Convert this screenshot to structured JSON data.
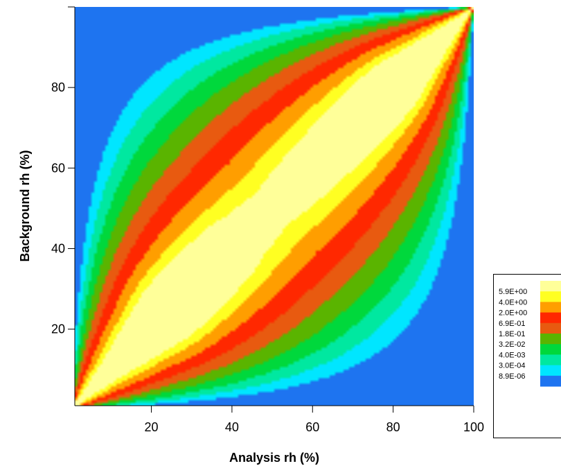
{
  "chart_data": {
    "type": "heatmap",
    "subtype": "filled-contour",
    "title": "",
    "xlabel": "Analysis rh (%)",
    "ylabel": "Background rh (%)",
    "xlim": [
      1,
      100
    ],
    "ylim": [
      1,
      100
    ],
    "x_ticks": [
      20,
      40,
      60,
      80,
      100
    ],
    "y_ticks": [
      20,
      40,
      60,
      80
    ],
    "grid": false,
    "legend_placement": "right",
    "contour_levels": [
      "8.9E-06",
      "3.0E-04",
      "4.0E-03",
      "3.2E-02",
      "1.8E-01",
      "6.9E-01",
      "2.0E+00",
      "4.0E+00",
      "5.9E+00"
    ],
    "level_values": [
      8.9e-06,
      0.0003,
      0.004,
      0.032,
      0.18,
      0.69,
      2.0,
      4.0,
      5.9
    ],
    "band_colors": [
      "#1e74f0",
      "#00e6ff",
      "#00e8a0",
      "#00d83c",
      "#5ab400",
      "#e85a10",
      "#ff2800",
      "#ff9e00",
      "#ffff22",
      "#ffff99"
    ],
    "peak_regions": [
      {
        "x": [
          5,
          43
        ],
        "y": [
          5,
          43
        ]
      },
      {
        "x": [
          62,
          100
        ],
        "y": [
          62,
          100
        ]
      }
    ]
  }
}
